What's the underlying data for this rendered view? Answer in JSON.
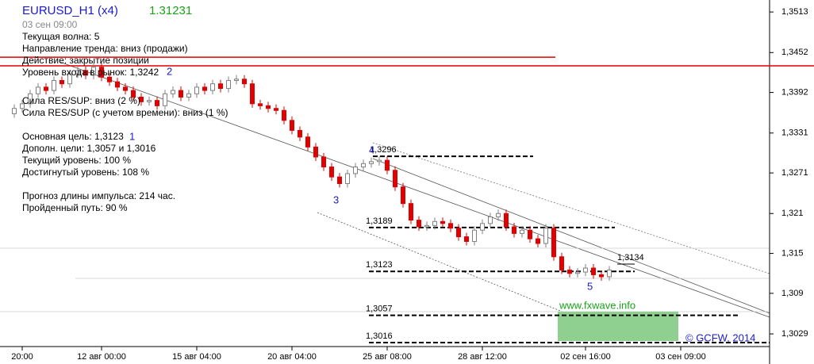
{
  "chart_data": {
    "type": "candlestick",
    "title": "EURUSD_H1 (x4)",
    "price": "1.31231",
    "time": "03 сен 09:00",
    "info": [
      {
        "text": "Текущая волна: 5",
        "color": "#1a1acc"
      },
      {
        "text": "Направление тренда: вниз (продажи)",
        "color": "#e00000"
      },
      {
        "text": "Действие: закрытие позиции",
        "color": "#000000"
      },
      {
        "text": "Уровень входа в рынок: 1,3242",
        "color": "#000000"
      },
      {
        "text": "Сила RES/SUP: вниз (2 %)",
        "color": "#000000"
      },
      {
        "text": "Сила RES/SUP (с учетом времени): вниз (1 %)",
        "color": "#000000"
      },
      {
        "text": "Основная цель: 1,3123",
        "color": "#000000"
      },
      {
        "text": "Дополн. цели:    1,3057 и 1,3016",
        "color": "#000000"
      },
      {
        "text": "Текущий уровень: 100 %",
        "color": "#000000"
      },
      {
        "text": "Достигнутый уровень: 108 %",
        "color": "#e00000"
      },
      {
        "text": "Прогноз длины импульса: 214 час.",
        "color": "#000000"
      },
      {
        "text": "Пройденный путь: 90 %",
        "color": "#000000"
      }
    ],
    "waves": [
      "1",
      "2",
      "3",
      "4",
      "5"
    ],
    "categories": [
      null,
      "20:00",
      null,
      null,
      null,
      null,
      null,
      null,
      null,
      null,
      null,
      "12 авг 00:00",
      null,
      null,
      null,
      null,
      null,
      null,
      null,
      null,
      null,
      null,
      null,
      "15 авг 04:00",
      null,
      null,
      null,
      null,
      null,
      null,
      null,
      null,
      null,
      null,
      null,
      "20 авг 04:00",
      null,
      null,
      null,
      null,
      null,
      null,
      null,
      null,
      null,
      null,
      null,
      "25 авг 08:00",
      null,
      null,
      null,
      null,
      null,
      null,
      null,
      null,
      null,
      null,
      null,
      "28 авг 12:00",
      null,
      null,
      null,
      null,
      null,
      null,
      null,
      null,
      null,
      null,
      null,
      null,
      "02 сен 16:00",
      null,
      null,
      null,
      null,
      null,
      null,
      null,
      null,
      null,
      null,
      null,
      "03 сен 09:00"
    ],
    "open": [
      1.336,
      1.3368,
      1.3375,
      1.339,
      1.34,
      1.3395,
      1.341,
      1.3405,
      1.342,
      1.3425,
      1.3418,
      1.343,
      1.3415,
      1.3408,
      1.34,
      1.3395,
      1.3385,
      1.3378,
      1.338,
      1.3372,
      1.339,
      1.3395,
      1.3385,
      1.339,
      1.34,
      1.3395,
      1.3405,
      1.3398,
      1.341,
      1.3412,
      1.3405,
      1.3375,
      1.3372,
      1.3368,
      1.3365,
      1.335,
      1.3335,
      1.3325,
      1.331,
      1.3295,
      1.328,
      1.3265,
      1.3255,
      1.327,
      1.328,
      1.3285,
      1.3288,
      1.329,
      1.3275,
      1.325,
      1.3225,
      1.32,
      1.319,
      1.3192,
      1.3198,
      1.3195,
      1.3188,
      1.3175,
      1.3168,
      1.3185,
      1.3195,
      1.3205,
      1.321,
      1.319,
      1.318,
      1.3185,
      1.3172,
      1.3165,
      1.3188,
      1.3145,
      1.3125,
      1.312,
      1.3122,
      1.3128,
      1.3118,
      1.3115,
      null,
      null,
      null,
      null,
      null,
      null,
      null,
      null,
      null
    ],
    "high": [
      1.3374,
      1.3381,
      1.3396,
      1.3406,
      1.3406,
      1.3416,
      1.3416,
      1.3426,
      1.3431,
      1.3431,
      1.3436,
      1.3436,
      1.3421,
      1.3414,
      1.3406,
      1.3401,
      1.3391,
      1.3386,
      1.3386,
      1.3396,
      1.3401,
      1.3401,
      1.3396,
      1.3406,
      1.3406,
      1.3411,
      1.3411,
      1.3416,
      1.3418,
      1.3418,
      1.3411,
      1.3381,
      1.3378,
      1.3374,
      1.3371,
      1.3356,
      1.3341,
      1.3331,
      1.3316,
      1.3301,
      1.3286,
      1.3271,
      1.3276,
      1.3286,
      1.3291,
      1.3294,
      1.3296,
      1.3296,
      1.3281,
      1.3256,
      1.3231,
      1.3206,
      1.3198,
      1.3204,
      1.3204,
      1.3201,
      1.3194,
      1.3181,
      1.3191,
      1.3201,
      1.3211,
      1.3216,
      1.3216,
      1.3196,
      1.3191,
      1.3191,
      1.3178,
      1.3194,
      1.3194,
      1.3151,
      1.3131,
      1.3128,
      1.3134,
      1.3134,
      1.3124,
      1.3131,
      null,
      null,
      null,
      null,
      null,
      null,
      null,
      null,
      null
    ],
    "low": [
      1.3354,
      1.3362,
      1.3369,
      1.3384,
      1.3389,
      1.3389,
      1.3399,
      1.3399,
      1.3414,
      1.3412,
      1.3412,
      1.3409,
      1.3402,
      1.3394,
      1.3389,
      1.3379,
      1.3372,
      1.3372,
      1.3366,
      1.3366,
      1.3384,
      1.3379,
      1.3379,
      1.3384,
      1.3389,
      1.3389,
      1.3392,
      1.3392,
      1.3404,
      1.3399,
      1.3369,
      1.3366,
      1.3362,
      1.3359,
      1.3344,
      1.3329,
      1.3319,
      1.3304,
      1.3289,
      1.3274,
      1.3259,
      1.3249,
      1.3249,
      1.3264,
      1.3274,
      1.3279,
      1.3282,
      1.3269,
      1.3244,
      1.3219,
      1.3194,
      1.3184,
      1.3184,
      1.3186,
      1.3189,
      1.3182,
      1.3169,
      1.3162,
      1.3162,
      1.3179,
      1.3189,
      1.3199,
      1.3184,
      1.3174,
      1.3174,
      1.3166,
      1.3159,
      1.3159,
      1.3139,
      1.3119,
      1.3114,
      1.3114,
      1.3116,
      1.3112,
      1.3109,
      1.3109,
      null,
      null,
      null,
      null,
      null,
      null,
      null,
      null,
      null
    ],
    "close": [
      1.3368,
      1.3375,
      1.339,
      1.34,
      1.3395,
      1.341,
      1.3405,
      1.342,
      1.3425,
      1.3418,
      1.343,
      1.3415,
      1.3408,
      1.34,
      1.3395,
      1.3385,
      1.3378,
      1.338,
      1.3372,
      1.339,
      1.3395,
      1.3385,
      1.339,
      1.34,
      1.3395,
      1.3405,
      1.3398,
      1.341,
      1.3412,
      1.3405,
      1.3375,
      1.3372,
      1.3368,
      1.3365,
      1.335,
      1.3335,
      1.3325,
      1.331,
      1.3295,
      1.328,
      1.3265,
      1.3255,
      1.327,
      1.328,
      1.3285,
      1.3288,
      1.329,
      1.3275,
      1.325,
      1.3225,
      1.32,
      1.319,
      1.3192,
      1.3198,
      1.3195,
      1.3188,
      1.3175,
      1.3168,
      1.3185,
      1.3195,
      1.3205,
      1.321,
      1.319,
      1.318,
      1.3185,
      1.3172,
      1.3165,
      1.3188,
      1.3145,
      1.3125,
      1.312,
      1.3122,
      1.3128,
      1.3118,
      1.3115,
      1.3125,
      null,
      null,
      null,
      null,
      null,
      null,
      null,
      null,
      null
    ],
    "up_color": "#808080",
    "down_color": "#e00000",
    "levels": [
      {
        "value": 1.3296,
        "label": "1,3296"
      },
      {
        "value": 1.3189,
        "label": "1,3189"
      },
      {
        "value": 1.3123,
        "label": "1,3123"
      },
      {
        "value": 1.3057,
        "label": "1,3057"
      },
      {
        "value": 1.3016,
        "label": "1,3016"
      },
      {
        "value": 1.3134,
        "label": "1,3134"
      }
    ],
    "red_levels": [
      1.3445,
      1.3432
    ],
    "ylim": [
      1.301,
      1.3531
    ],
    "yticks": [
      {
        "value": 1.3513,
        "label": "1,3513"
      },
      {
        "value": 1.3452,
        "label": "1,3452"
      },
      {
        "value": 1.3392,
        "label": "1,3392"
      },
      {
        "value": 1.3331,
        "label": "1,3331"
      },
      {
        "value": 1.3271,
        "label": "1,3271"
      },
      {
        "value": 1.321,
        "label": "1,321"
      },
      {
        "value": 1.315,
        "label": "1,315"
      },
      {
        "value": 1.309,
        "label": "1,309"
      },
      {
        "value": 1.3029,
        "label": "1,3029"
      }
    ],
    "site": "www.fxwave.info",
    "copyright": "© GCFW, 2014"
  }
}
